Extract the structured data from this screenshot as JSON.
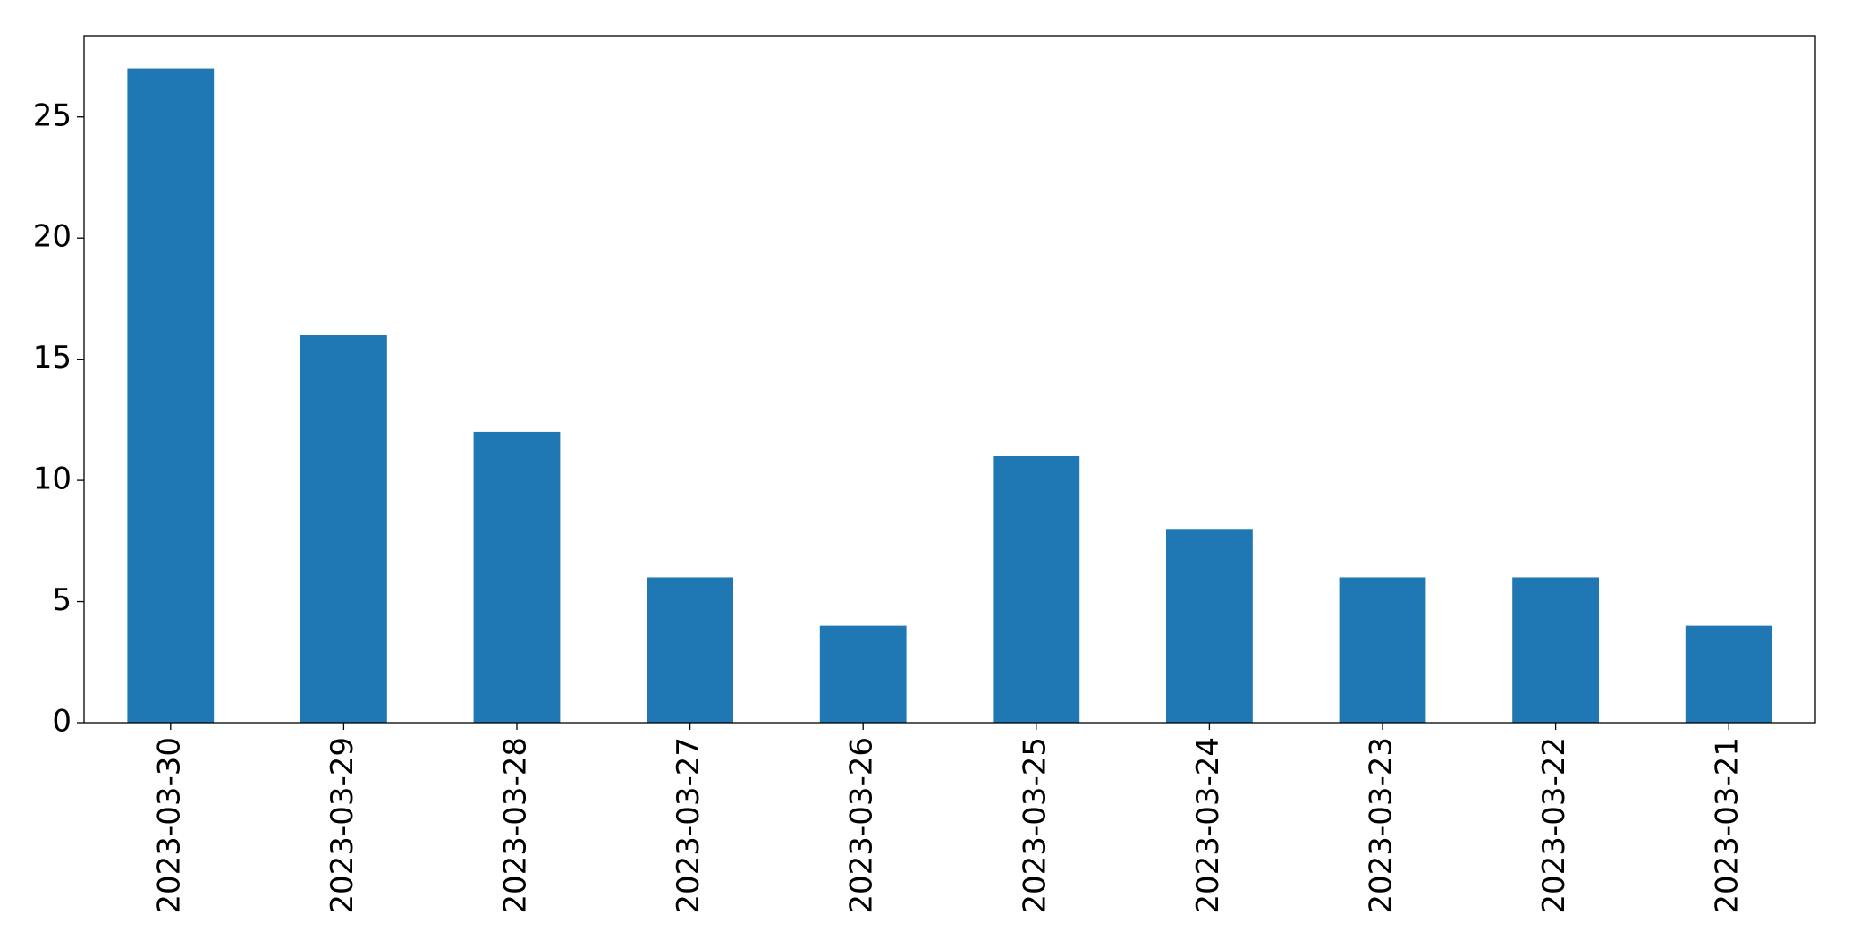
{
  "chart_data": {
    "type": "bar",
    "categories": [
      "2023-03-30",
      "2023-03-29",
      "2023-03-28",
      "2023-03-27",
      "2023-03-26",
      "2023-03-25",
      "2023-03-24",
      "2023-03-23",
      "2023-03-22",
      "2023-03-21"
    ],
    "values": [
      27,
      16,
      12,
      6,
      4,
      11,
      8,
      6,
      6,
      4
    ],
    "color": "#1f77b4",
    "ylim": [
      0,
      28.35
    ],
    "yticks": [
      0,
      5,
      10,
      15,
      20,
      25
    ],
    "grid": false
  }
}
